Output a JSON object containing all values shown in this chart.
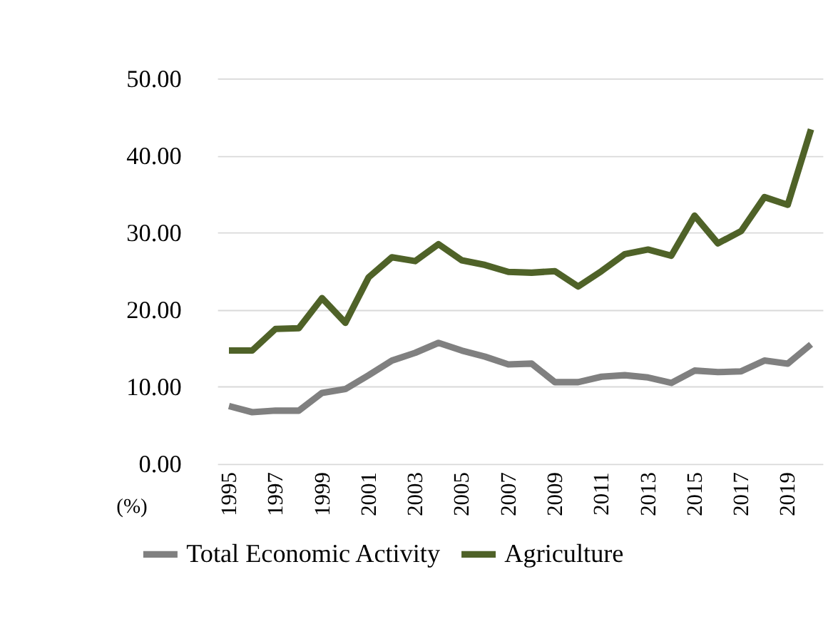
{
  "chart_data": {
    "type": "line",
    "ylabel": "(%)",
    "categories": [
      "1995",
      null,
      "1997",
      null,
      "1999",
      null,
      "2001",
      null,
      "2003",
      null,
      "2005",
      null,
      "2007",
      null,
      "2009",
      null,
      "2011",
      null,
      "2013",
      null,
      "2015",
      null,
      "2017",
      null,
      "2019",
      null
    ],
    "series": [
      {
        "name": "Total Economic Activity",
        "color": "#808080",
        "values": [
          7.5,
          6.7,
          6.9,
          6.9,
          9.2,
          9.7,
          11.5,
          13.4,
          14.4,
          15.7,
          14.7,
          13.9,
          12.9,
          13.0,
          10.6,
          10.6,
          11.3,
          11.5,
          11.2,
          10.5,
          12.1,
          11.9,
          12.0,
          13.4,
          13.0,
          15.5
        ]
      },
      {
        "name": "Agriculture",
        "color": "#4f6228",
        "values": [
          14.7,
          14.7,
          17.5,
          17.6,
          21.5,
          18.3,
          24.2,
          26.8,
          26.3,
          28.5,
          26.4,
          25.8,
          24.9,
          24.8,
          25.0,
          23.0,
          25.0,
          27.2,
          27.8,
          27.0,
          32.2,
          28.6,
          30.2,
          34.6,
          33.6,
          43.4
        ]
      }
    ],
    "ylim": [
      0,
      50
    ],
    "yticks": [
      {
        "value": 0,
        "label": "0.00"
      },
      {
        "value": 10,
        "label": "10.00"
      },
      {
        "value": 20,
        "label": "20.00"
      },
      {
        "value": 30,
        "label": "30.00"
      },
      {
        "value": 40,
        "label": "40.00"
      },
      {
        "value": 50,
        "label": "50.00"
      }
    ],
    "grid": "y",
    "legend": "bottom",
    "line_style": "solid",
    "marker": "none"
  }
}
